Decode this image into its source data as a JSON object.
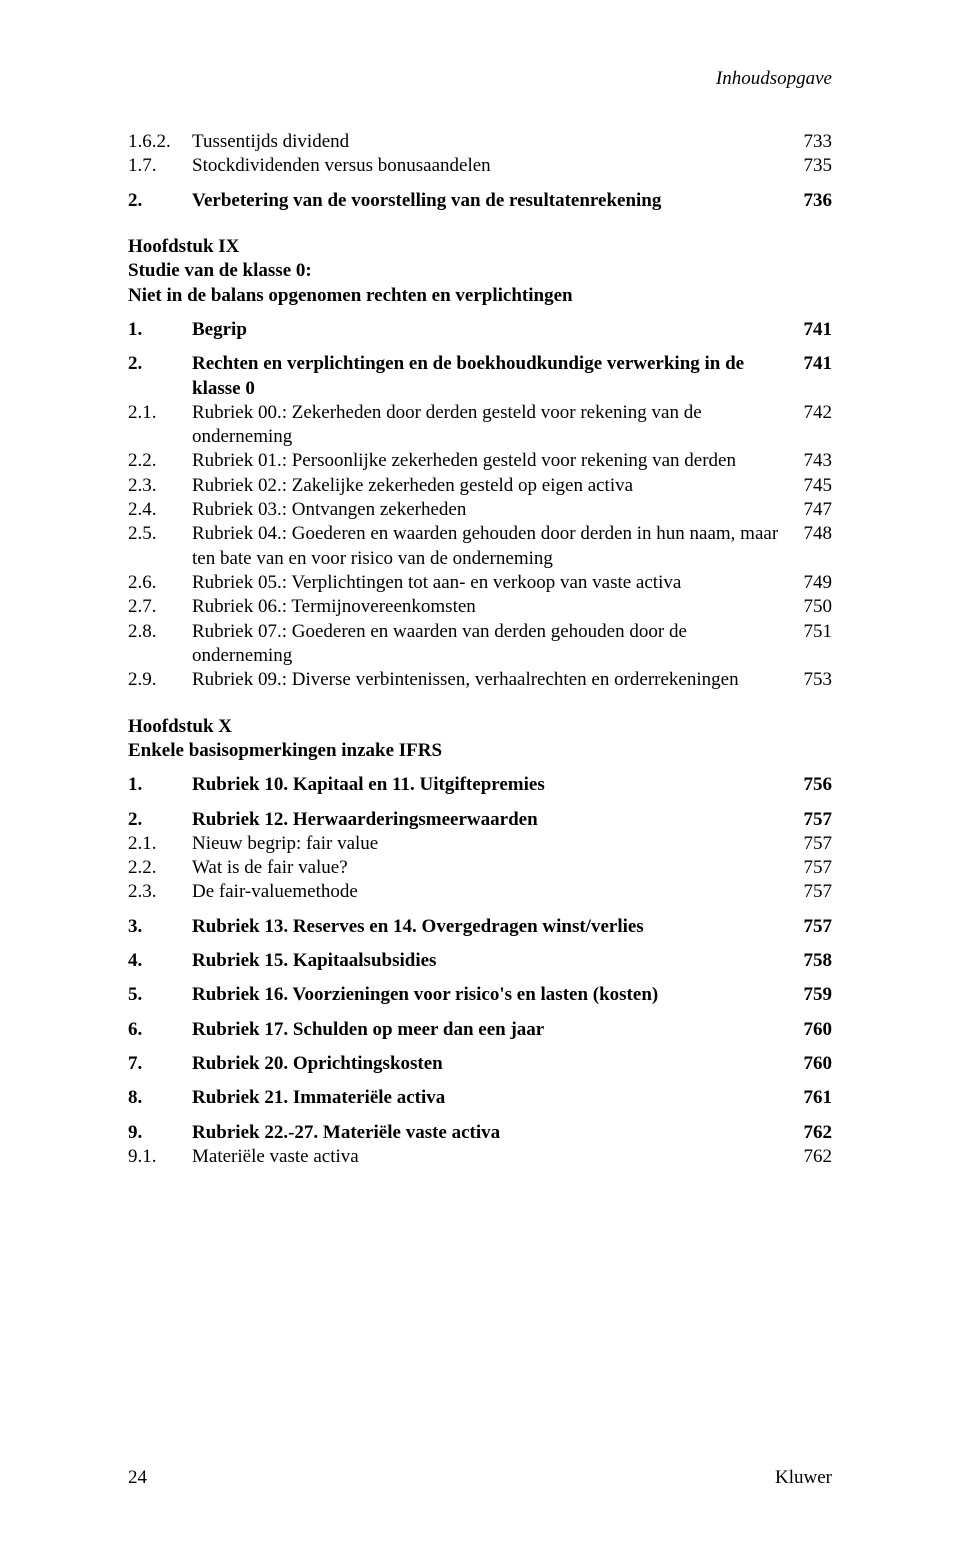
{
  "header": {
    "running_title": "Inhoudsopgave"
  },
  "sec1": {
    "r0": {
      "n": "1.6.2.",
      "t": "Tussentijds dividend",
      "p": "733"
    },
    "r1": {
      "n": "1.7.",
      "t": "Stockdividenden versus bonusaandelen",
      "p": "735"
    },
    "r2": {
      "n": "2.",
      "t": "Verbetering van de voorstelling van de resultatenrekening",
      "p": "736"
    }
  },
  "chapIX": {
    "title": "Hoofdstuk IX",
    "sub1": "Studie van de klasse 0:",
    "sub2": "Niet in de balans opgenomen rechten en verplichtingen"
  },
  "sec2": {
    "r0": {
      "n": "1.",
      "t": "Begrip",
      "p": "741"
    },
    "r1": {
      "n": "2.",
      "t": "Rechten en verplichtingen en de boekhoudkundige verwerking in de klasse 0",
      "p": "741"
    },
    "r2": {
      "n": "2.1.",
      "t": "Rubriek 00.: Zekerheden door derden gesteld voor rekening van de onderneming",
      "p": "742"
    },
    "r3": {
      "n": "2.2.",
      "t": "Rubriek 01.: Persoonlijke zekerheden gesteld voor rekening van derden",
      "p": "743"
    },
    "r4": {
      "n": "2.3.",
      "t": "Rubriek 02.: Zakelijke zekerheden gesteld op eigen activa",
      "p": "745"
    },
    "r5": {
      "n": "2.4.",
      "t": "Rubriek 03.: Ontvangen zekerheden",
      "p": "747"
    },
    "r6": {
      "n": "2.5.",
      "t": "Rubriek 04.: Goederen en waarden gehouden door derden in hun naam, maar ten bate van en voor risico van de onderneming",
      "p": "748"
    },
    "r7": {
      "n": "2.6.",
      "t": "Rubriek 05.: Verplichtingen tot aan- en verkoop van vaste activa",
      "p": "749"
    },
    "r8": {
      "n": "2.7.",
      "t": "Rubriek 06.: Termijnovereenkomsten",
      "p": "750"
    },
    "r9": {
      "n": "2.8.",
      "t": "Rubriek 07.: Goederen en waarden van derden gehouden door de onderneming",
      "p": "751"
    },
    "r10": {
      "n": "2.9.",
      "t": "Rubriek 09.: Diverse verbintenissen, verhaalrechten en orderrekeningen",
      "p": "753"
    }
  },
  "chapX": {
    "title": "Hoofdstuk X",
    "sub": "Enkele basisopmerkingen inzake IFRS"
  },
  "sec3": {
    "r0": {
      "n": "1.",
      "t": "Rubriek 10. Kapitaal en 11. Uitgiftepremies",
      "p": "756"
    },
    "r1": {
      "n": "2.",
      "t": "Rubriek 12. Herwaarderingsmeerwaarden",
      "p": "757"
    },
    "r2": {
      "n": "2.1.",
      "t": "Nieuw begrip: fair value",
      "p": "757"
    },
    "r3": {
      "n": "2.2.",
      "t": "Wat is de fair value?",
      "p": "757"
    },
    "r4": {
      "n": "2.3.",
      "t": "De fair-valuemethode",
      "p": "757"
    },
    "r5": {
      "n": "3.",
      "t": "Rubriek 13. Reserves en 14. Overgedragen winst/verlies",
      "p": "757"
    },
    "r6": {
      "n": "4.",
      "t": "Rubriek 15. Kapitaalsubsidies",
      "p": "758"
    },
    "r7": {
      "n": "5.",
      "t": "Rubriek 16. Voorzieningen voor risico's en lasten (kosten)",
      "p": "759"
    },
    "r8": {
      "n": "6.",
      "t": "Rubriek 17. Schulden op meer dan een jaar",
      "p": "760"
    },
    "r9": {
      "n": "7.",
      "t": "Rubriek 20. Oprichtingskosten",
      "p": "760"
    },
    "r10": {
      "n": "8.",
      "t": "Rubriek 21. Immateriële activa",
      "p": "761"
    },
    "r11": {
      "n": "9.",
      "t": "Rubriek 22.-27. Materiële vaste activa",
      "p": "762"
    },
    "r12": {
      "n": "9.1.",
      "t": "Materiële vaste activa",
      "p": "762"
    }
  },
  "footer": {
    "page_number": "24",
    "publisher": "Kluwer"
  }
}
